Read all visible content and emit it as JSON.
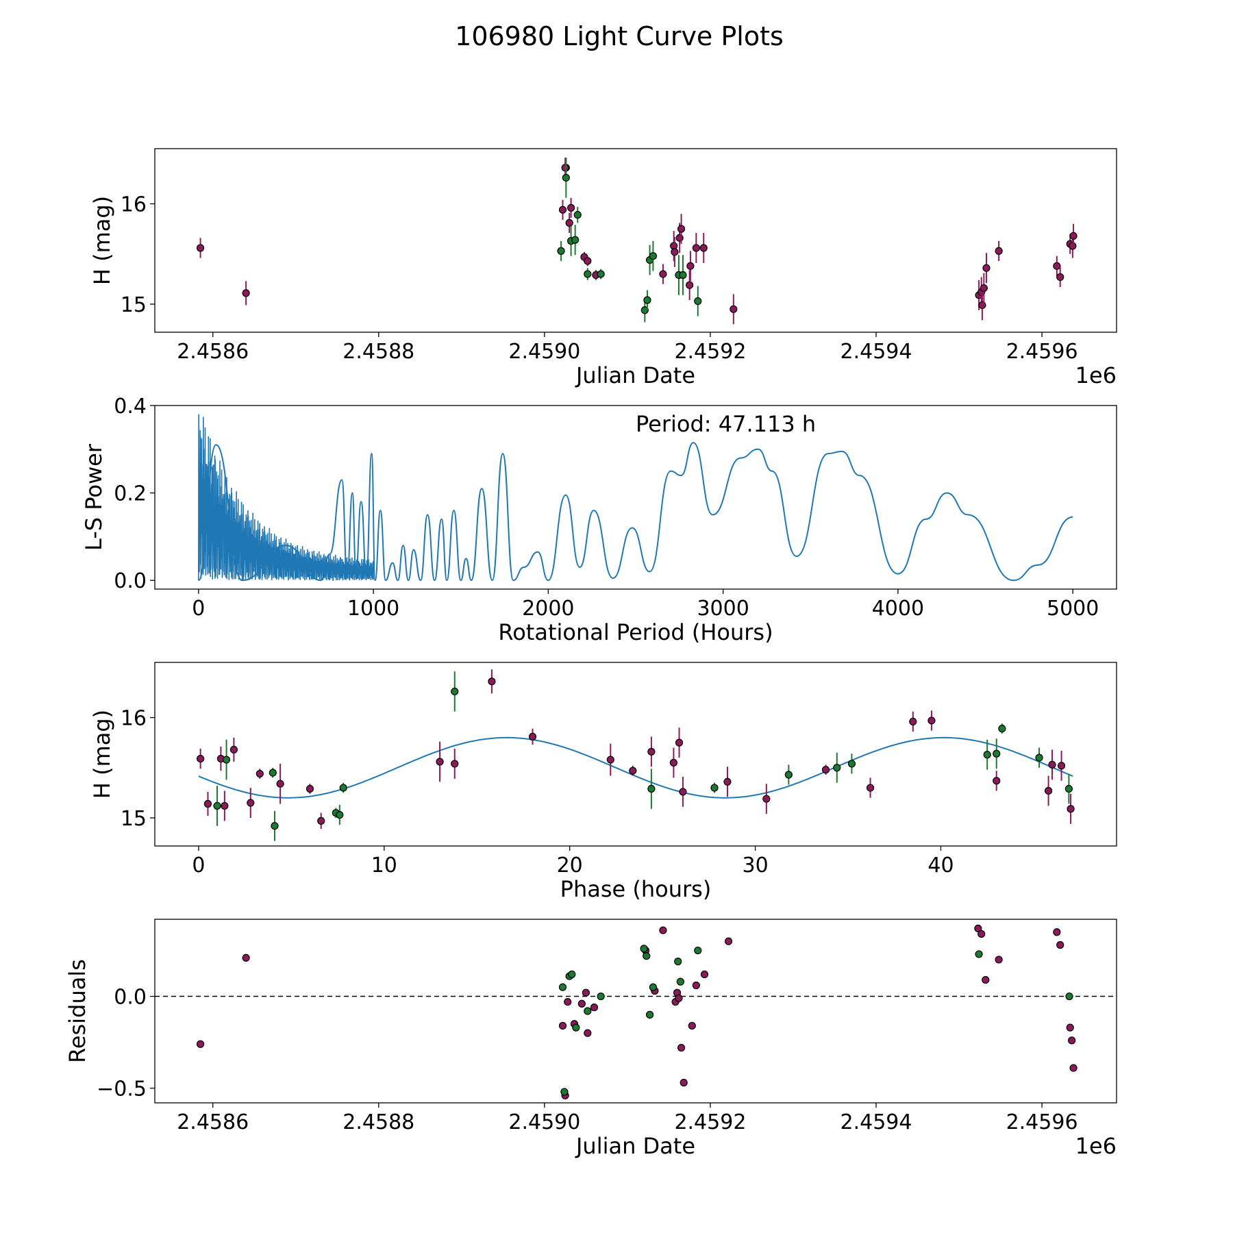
{
  "figure": {
    "title": "106980 Light Curve Plots"
  },
  "colors": {
    "r_band": "#8b1a5a",
    "g_band": "#1a7a30",
    "model": "#1f77b4",
    "axis": "#000000"
  },
  "chart_data": [
    {
      "id": "lc",
      "type": "scatter",
      "title": "",
      "xlabel": "Julian Date",
      "ylabel": "H (mag)",
      "x_offset_label": "1e6",
      "xlim": [
        2.45853,
        2.45969
      ],
      "ylim": [
        14.72,
        16.55
      ],
      "xticks": [
        2.4586,
        2.4588,
        2.459,
        2.4592,
        2.4594,
        2.4596
      ],
      "xtick_labels": [
        "2.4586",
        "2.4588",
        "2.4590",
        "2.4592",
        "2.4594",
        "2.4596"
      ],
      "yticks": [
        15,
        16
      ],
      "ytick_labels": [
        "15",
        "16"
      ],
      "series": [
        {
          "name": "r",
          "color": "r_band",
          "x": [
            2.458585,
            2.45864,
            2.459022,
            2.459026,
            2.45903,
            2.459032,
            2.459025,
            2.459048,
            2.459052,
            2.459062,
            2.459143,
            2.459156,
            2.459157,
            2.459163,
            2.459165,
            2.459176,
            2.459175,
            2.459183,
            2.459192,
            2.459228,
            2.459524,
            2.459527,
            2.459528,
            2.45953,
            2.459533,
            2.459548,
            2.459618,
            2.459622,
            2.459634,
            2.459637,
            2.459638
          ],
          "y": [
            15.56,
            15.11,
            15.94,
            16.36,
            15.81,
            15.96,
            16.36,
            15.47,
            15.43,
            15.29,
            15.3,
            15.58,
            15.52,
            15.66,
            15.75,
            15.38,
            15.19,
            15.56,
            15.56,
            14.95,
            15.09,
            15.12,
            14.99,
            15.16,
            15.36,
            15.53,
            15.38,
            15.27,
            15.6,
            15.58,
            15.68
          ],
          "err": [
            0.1,
            0.12,
            0.1,
            0.1,
            0.1,
            0.1,
            0.1,
            0.05,
            0.05,
            0.05,
            0.1,
            0.15,
            0.15,
            0.15,
            0.15,
            0.15,
            0.15,
            0.15,
            0.15,
            0.15,
            0.15,
            0.15,
            0.15,
            0.15,
            0.15,
            0.1,
            0.1,
            0.1,
            0.1,
            0.12,
            0.12
          ]
        },
        {
          "name": "g",
          "color": "g_band",
          "x": [
            2.45902,
            2.459026,
            2.459032,
            2.459037,
            2.45904,
            2.459052,
            2.459068,
            2.459121,
            2.459124,
            2.459127,
            2.459131,
            2.459162,
            2.459167,
            2.459185
          ],
          "y": [
            15.53,
            16.26,
            15.63,
            15.64,
            15.89,
            15.3,
            15.3,
            14.94,
            15.04,
            15.44,
            15.48,
            15.29,
            15.29,
            15.03
          ],
          "err": [
            0.1,
            0.2,
            0.15,
            0.15,
            0.08,
            0.06,
            0.05,
            0.12,
            0.1,
            0.15,
            0.15,
            0.2,
            0.2,
            0.15
          ]
        }
      ]
    },
    {
      "id": "ls",
      "type": "line",
      "title": "",
      "xlabel": "Rotational Period (Hours)",
      "ylabel": "L-S Power",
      "annotation": "Period: 47.113 h",
      "xlim": [
        -250,
        5250
      ],
      "ylim": [
        -0.02,
        0.4
      ],
      "xticks": [
        0,
        1000,
        2000,
        3000,
        4000,
        5000
      ],
      "xtick_labels": [
        "0",
        "1000",
        "2000",
        "3000",
        "4000",
        "5000"
      ],
      "yticks": [
        0.0,
        0.2,
        0.4
      ],
      "ytick_labels": [
        "0.0",
        "0.2",
        "0.4"
      ],
      "dense_region": {
        "x_start": 0,
        "x_end": 1000,
        "max_power": 0.38
      },
      "peaks": {
        "x": [
          0,
          100,
          250,
          500,
          700,
          750,
          820,
          850,
          880,
          900,
          930,
          960,
          990,
          1010,
          1040,
          1070,
          1110,
          1140,
          1170,
          1200,
          1230,
          1270,
          1310,
          1350,
          1390,
          1420,
          1460,
          1500,
          1530,
          1560,
          1620,
          1680,
          1740,
          1800,
          1860,
          1940,
          2000,
          2100,
          2180,
          2260,
          2370,
          2480,
          2580,
          2700,
          2760,
          2830,
          2940,
          3100,
          3200,
          3280,
          3420,
          3600,
          3680,
          3780,
          4000,
          4160,
          4280,
          4400,
          4660,
          4800,
          5000
        ],
        "y": [
          0.0,
          0.31,
          0.0,
          0.08,
          0.0,
          0.06,
          0.23,
          0.01,
          0.2,
          0.02,
          0.18,
          0.01,
          0.29,
          0.0,
          0.16,
          0.0,
          0.04,
          0.0,
          0.08,
          0.0,
          0.07,
          0.0,
          0.15,
          0.0,
          0.14,
          0.0,
          0.16,
          0.0,
          0.05,
          0.0,
          0.21,
          0.0,
          0.29,
          0.0,
          0.03,
          0.065,
          0.0,
          0.195,
          0.03,
          0.16,
          0.005,
          0.12,
          0.02,
          0.25,
          0.24,
          0.315,
          0.15,
          0.28,
          0.3,
          0.25,
          0.055,
          0.29,
          0.295,
          0.24,
          0.015,
          0.14,
          0.2,
          0.15,
          0.0,
          0.035,
          0.145
        ]
      }
    },
    {
      "id": "phase",
      "type": "scatter",
      "title": "",
      "xlabel": "Phase (hours)",
      "ylabel": "H (mag)",
      "xlim": [
        -2.36,
        49.47
      ],
      "ylim": [
        14.72,
        16.55
      ],
      "xticks": [
        0,
        10,
        20,
        30,
        40
      ],
      "xtick_labels": [
        "0",
        "10",
        "20",
        "30",
        "40"
      ],
      "yticks": [
        15,
        16
      ],
      "ytick_labels": [
        "15",
        "16"
      ],
      "model": {
        "mean": 15.5,
        "amplitude": 0.3,
        "period": 23.5565,
        "phase_peak": 16.6,
        "x_range": [
          0,
          47.113
        ]
      },
      "series": [
        {
          "name": "r",
          "color": "r_band",
          "x": [
            0.1,
            0.5,
            1.2,
            1.4,
            1.9,
            2.8,
            3.3,
            4.4,
            6.0,
            6.6,
            13.0,
            13.8,
            15.8,
            18.0,
            22.2,
            23.4,
            24.4,
            25.6,
            25.9,
            26.1,
            28.5,
            30.6,
            33.8,
            36.2,
            38.5,
            39.5,
            43.0,
            45.8,
            46.0,
            46.5,
            47.0
          ],
          "y": [
            15.59,
            15.14,
            15.59,
            15.12,
            15.68,
            15.15,
            15.44,
            15.34,
            15.29,
            14.97,
            15.56,
            15.54,
            16.36,
            15.81,
            15.58,
            15.47,
            15.66,
            15.55,
            15.75,
            15.26,
            15.36,
            15.19,
            15.48,
            15.3,
            15.96,
            15.97,
            15.37,
            15.27,
            15.53,
            15.52,
            15.09
          ],
          "err": [
            0.1,
            0.12,
            0.12,
            0.15,
            0.12,
            0.15,
            0.05,
            0.2,
            0.05,
            0.08,
            0.2,
            0.15,
            0.12,
            0.08,
            0.16,
            0.05,
            0.15,
            0.15,
            0.15,
            0.15,
            0.15,
            0.15,
            0.05,
            0.1,
            0.1,
            0.1,
            0.1,
            0.15,
            0.15,
            0.15,
            0.15
          ]
        },
        {
          "name": "g",
          "color": "g_band",
          "x": [
            1.0,
            1.5,
            4.0,
            4.1,
            7.4,
            7.6,
            7.8,
            13.8,
            24.4,
            27.8,
            31.8,
            34.4,
            35.2,
            42.5,
            43.0,
            43.3,
            45.3,
            46.9
          ],
          "y": [
            15.12,
            15.58,
            15.45,
            14.92,
            15.05,
            15.03,
            15.3,
            16.26,
            15.29,
            15.3,
            15.43,
            15.5,
            15.54,
            15.63,
            15.64,
            15.89,
            15.6,
            15.29
          ],
          "err": [
            0.2,
            0.2,
            0.05,
            0.15,
            0.05,
            0.1,
            0.05,
            0.2,
            0.2,
            0.05,
            0.1,
            0.15,
            0.1,
            0.15,
            0.15,
            0.05,
            0.1,
            0.15
          ]
        }
      ]
    },
    {
      "id": "res",
      "type": "scatter",
      "title": "",
      "xlabel": "Julian Date",
      "ylabel": "Residuals",
      "x_offset_label": "1e6",
      "xlim": [
        2.45853,
        2.45969
      ],
      "ylim": [
        -0.58,
        0.42
      ],
      "xticks": [
        2.4586,
        2.4588,
        2.459,
        2.4592,
        2.4594,
        2.4596
      ],
      "xtick_labels": [
        "2.4586",
        "2.4588",
        "2.4590",
        "2.4592",
        "2.4594",
        "2.4596"
      ],
      "yticks": [
        -0.5,
        0.0
      ],
      "ytick_labels": [
        "−0.5",
        "0.0"
      ],
      "zero_line": 0.0,
      "series": [
        {
          "name": "r",
          "color": "r_band",
          "x": [
            2.458585,
            2.45864,
            2.459022,
            2.459025,
            2.459028,
            2.459036,
            2.459045,
            2.45905,
            2.459052,
            2.45906,
            2.459122,
            2.459133,
            2.459143,
            2.459158,
            2.45916,
            2.459162,
            2.459165,
            2.459168,
            2.459178,
            2.459183,
            2.459193,
            2.459222,
            2.459523,
            2.459527,
            2.459532,
            2.459548,
            2.459618,
            2.459622,
            2.459634,
            2.459636,
            2.459638
          ],
          "y": [
            -0.26,
            0.21,
            -0.16,
            -0.54,
            -0.03,
            -0.15,
            -0.04,
            0.02,
            -0.2,
            -0.06,
            0.25,
            0.03,
            0.36,
            -0.03,
            0.02,
            -0.01,
            -0.28,
            -0.47,
            -0.16,
            0.06,
            0.12,
            0.3,
            0.37,
            0.34,
            0.09,
            0.2,
            0.35,
            0.28,
            -0.17,
            -0.24,
            -0.39
          ],
          "err": []
        },
        {
          "name": "g",
          "color": "g_band",
          "x": [
            2.459022,
            2.459024,
            2.45903,
            2.459033,
            2.459038,
            2.459052,
            2.459068,
            2.45912,
            2.459123,
            2.459127,
            2.459131,
            2.459161,
            2.459164,
            2.459185,
            2.459524,
            2.459633
          ],
          "y": [
            0.05,
            -0.52,
            0.11,
            0.12,
            -0.17,
            -0.08,
            0.0,
            0.26,
            0.22,
            -0.1,
            0.05,
            0.19,
            0.08,
            0.25,
            0.23,
            0.0
          ],
          "err": []
        }
      ]
    }
  ]
}
